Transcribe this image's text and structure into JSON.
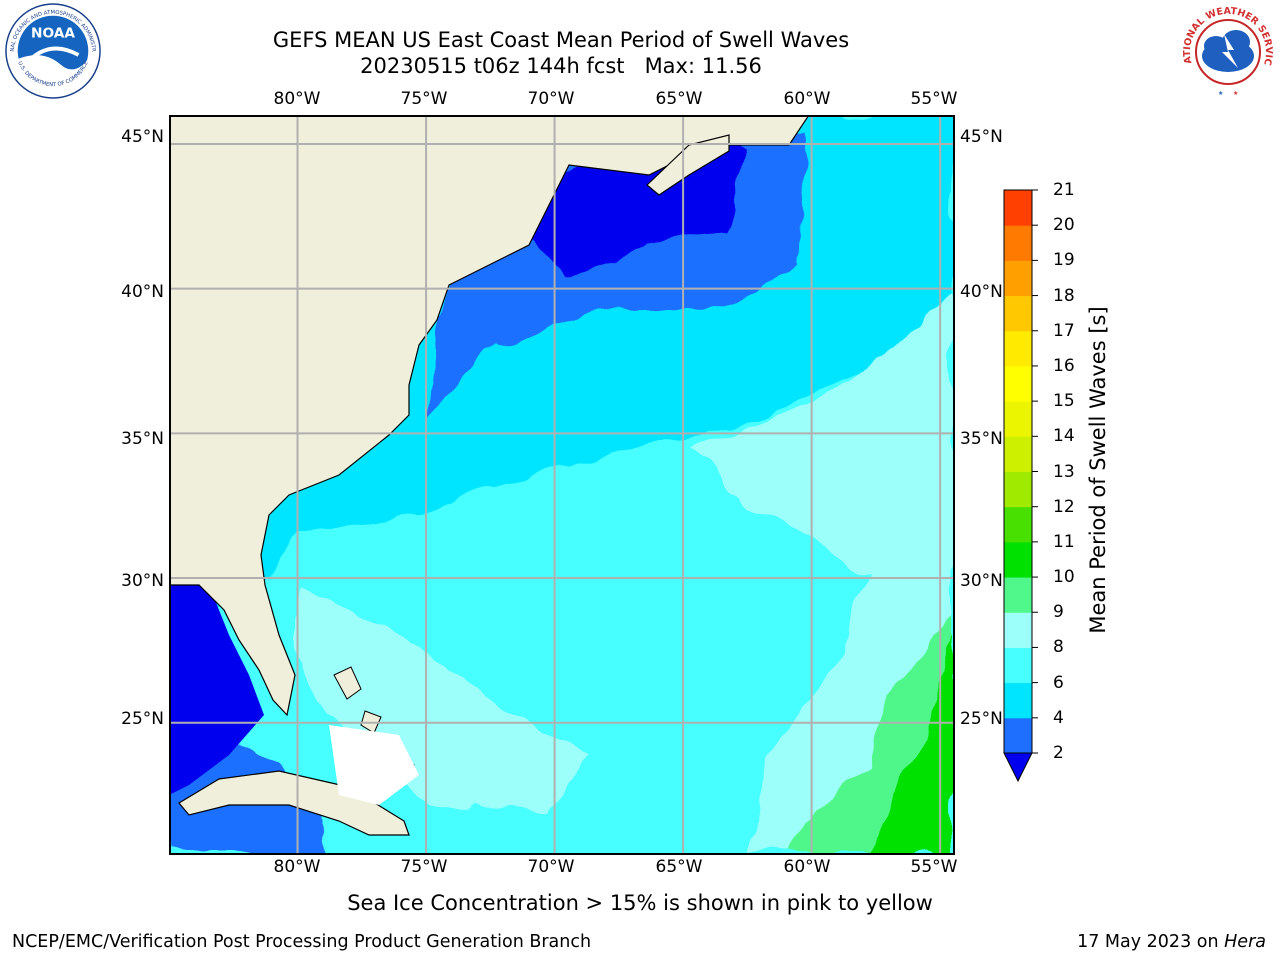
{
  "title": {
    "line1": "GEFS MEAN US East Coast Mean Period of Swell Waves",
    "line2": "20230515 t06z 144h fcst   Max: 11.56"
  },
  "map": {
    "lon_labels": [
      "80°W",
      "75°W",
      "70°W",
      "65°W",
      "60°W",
      "55°W"
    ],
    "lat_labels": [
      "45°N",
      "40°N",
      "35°N",
      "30°N",
      "25°N"
    ],
    "lon_values": [
      -80,
      -75,
      -70,
      -65,
      -60,
      -55
    ],
    "lat_values": [
      45,
      40,
      35,
      30,
      25
    ],
    "lon_range": [
      -85,
      -54.5
    ],
    "lat_range": [
      20.5,
      46
    ],
    "land_color": "#efefdc",
    "grid_color": "#b0b0b0"
  },
  "colorbar": {
    "title": "Mean Period of Swell Waves [s]",
    "labels": [
      "2",
      "4",
      "6",
      "8",
      "9",
      "10",
      "11",
      "12",
      "13",
      "14",
      "15",
      "16",
      "17",
      "18",
      "19",
      "20",
      "21"
    ],
    "colors": [
      "#1f6fff",
      "#00e5ff",
      "#48ffff",
      "#9dfff9",
      "#50f78a",
      "#00e100",
      "#47e000",
      "#a0ea00",
      "#cdf000",
      "#ebf500",
      "#ffff00",
      "#ffea00",
      "#ffc800",
      "#ffa000",
      "#ff7a00",
      "#ff4000",
      "#ff0000"
    ],
    "under_color": "#0000ee"
  },
  "notes": {
    "ice": "Sea Ice Concentration > 15% is shown in pink to yellow",
    "footer_left": "NCEP/EMC/Verification Post Processing Product Generation Branch",
    "footer_date": "17 May 2023 on ",
    "footer_host": "Hera"
  },
  "logos": {
    "noaa": "NOAA",
    "noaa_ring": "NATIONAL OCEANIC AND ATMOSPHERIC ADMINISTRATION",
    "noaa_ring_bottom": "U.S. DEPARTMENT OF COMMERCE",
    "nws_ring": "NATIONAL WEATHER SERVICE"
  }
}
